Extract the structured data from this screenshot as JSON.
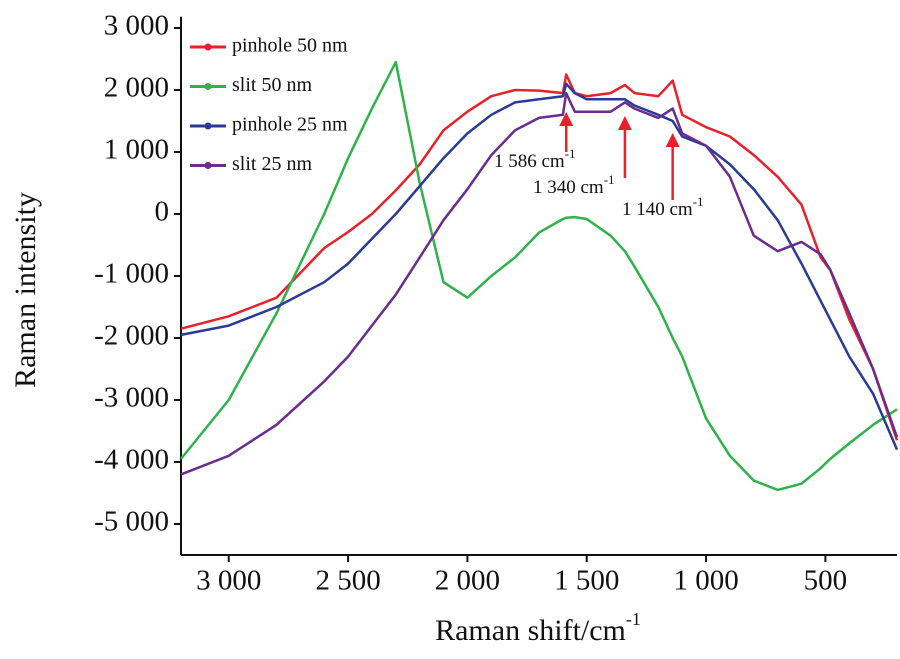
{
  "chart_data": {
    "type": "line",
    "x_label": "Raman shift/cm",
    "x_label_sup": "-1",
    "y_label": "Raman intensity",
    "x": [
      3200,
      3000,
      2800,
      2600,
      2500,
      2400,
      2300,
      2200,
      2100,
      2000,
      1900,
      1800,
      1700,
      1600,
      1586,
      1550,
      1500,
      1400,
      1340,
      1300,
      1200,
      1140,
      1100,
      1000,
      900,
      800,
      700,
      600,
      520,
      480,
      400,
      300,
      200
    ],
    "series": [
      {
        "name": "pinhole 50 nm",
        "color": "#e8202a",
        "values": [
          -1850,
          -1650,
          -1350,
          -550,
          -290,
          0,
          380,
          800,
          1350,
          1650,
          1900,
          2000,
          1990,
          1950,
          2250,
          1950,
          1900,
          1950,
          2080,
          1950,
          1900,
          2150,
          1600,
          1400,
          1250,
          950,
          600,
          150,
          -700,
          -900,
          -1700,
          -2500,
          -3650
        ]
      },
      {
        "name": "slit 50 nm",
        "color": "#2db34a",
        "values": [
          -3950,
          -3000,
          -1600,
          0,
          900,
          1700,
          2450,
          500,
          -1100,
          -1350,
          -1000,
          -700,
          -300,
          -80,
          -60,
          -50,
          -80,
          -350,
          -600,
          -850,
          -1500,
          -2000,
          -2300,
          -3300,
          -3900,
          -4300,
          -4450,
          -4350,
          -4100,
          -3950,
          -3700,
          -3400,
          -3150
        ]
      },
      {
        "name": "pinhole 25 nm",
        "color": "#2a3a97",
        "values": [
          -1950,
          -1800,
          -1500,
          -1100,
          -800,
          -400,
          0,
          450,
          900,
          1300,
          1600,
          1800,
          1850,
          1900,
          2100,
          1950,
          1850,
          1850,
          1850,
          1750,
          1600,
          1500,
          1250,
          1100,
          800,
          400,
          -100,
          -800,
          -1400,
          -1700,
          -2300,
          -2900,
          -3800
        ]
      },
      {
        "name": "slit 25 nm",
        "color": "#6a2c8e",
        "values": [
          -4200,
          -3900,
          -3400,
          -2700,
          -2300,
          -1800,
          -1300,
          -700,
          -100,
          400,
          950,
          1350,
          1550,
          1600,
          1950,
          1650,
          1650,
          1650,
          1800,
          1700,
          1550,
          1700,
          1300,
          1100,
          600,
          -350,
          -600,
          -450,
          -650,
          -900,
          -1600,
          -2500,
          -3600
        ]
      }
    ],
    "xlim": [
      3200,
      200
    ],
    "ylim": [
      -5500,
      3100
    ],
    "xticks": [
      {
        "value": 3000,
        "label": "3 000"
      },
      {
        "value": 2500,
        "label": "2 500"
      },
      {
        "value": 2000,
        "label": "2 000"
      },
      {
        "value": 1500,
        "label": "1 500"
      },
      {
        "value": 1000,
        "label": "1 000"
      },
      500
    ],
    "yticks": [
      {
        "value": 3000,
        "label": "3 000"
      },
      {
        "value": 2000,
        "label": "2 000"
      },
      {
        "value": 1000,
        "label": "1 000"
      },
      0,
      {
        "value": -1000,
        "label": "-1 000"
      },
      {
        "value": -2000,
        "label": "-2 000"
      },
      {
        "value": -3000,
        "label": "-3 000"
      },
      {
        "value": -4000,
        "label": "-4 000"
      },
      {
        "value": -5000,
        "label": "-5 000"
      }
    ],
    "legend": "upper left",
    "grid": false,
    "annotations": [
      {
        "x": 1586,
        "text": "1 586 cm",
        "sup": "-1",
        "color": "#e8202a"
      },
      {
        "x": 1340,
        "text": "1 340 cm",
        "sup": "-1",
        "color": "#e8202a"
      },
      {
        "x": 1140,
        "text": "1 140 cm",
        "sup": "-1",
        "color": "#e8202a"
      }
    ]
  }
}
